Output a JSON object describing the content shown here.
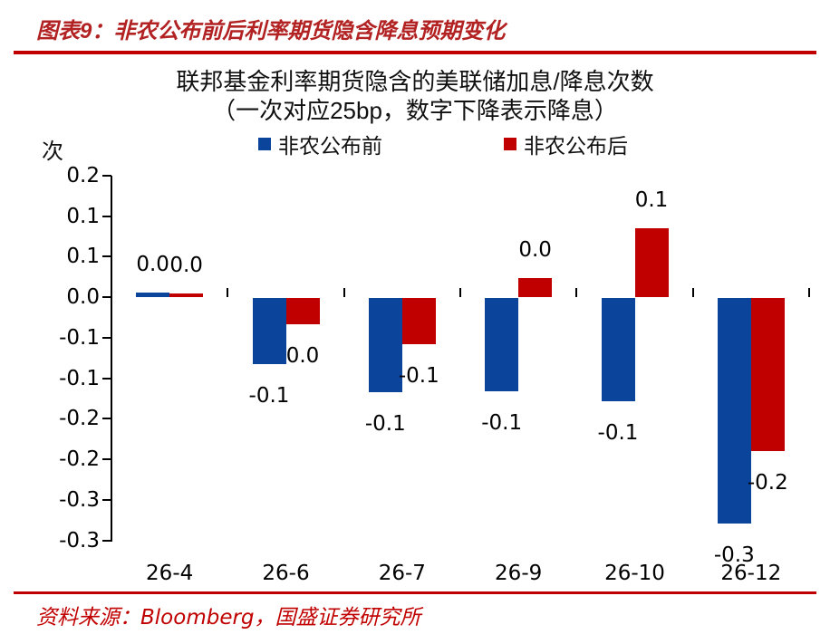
{
  "header": {
    "title": "图表9：非农公布前后利率期货隐含降息预期变化"
  },
  "footer": {
    "source": "资料来源：Bloomberg，国盛证券研究所"
  },
  "colors": {
    "before_blue": "#0B459B",
    "after_red": "#C00000",
    "header_text_red": "#B22222",
    "rule_red": "#C00000",
    "axis_black": "#000000"
  },
  "chart_data": {
    "type": "bar",
    "title_line1": "联邦基金利率期货隐含的美联储加息/降息次数",
    "title_line2": "（一次对应25bp，数字下降表示降息）",
    "unit_label": "次",
    "legend_position": "top",
    "grid": false,
    "categories": [
      "26-4",
      "26-6",
      "26-7",
      "26-9",
      "26-10",
      "26-12"
    ],
    "series": [
      {
        "name": "非农公布前",
        "color_key": "before_blue",
        "values": [
          0.006,
          -0.091,
          -0.129,
          -0.128,
          -0.142,
          -0.31
        ],
        "labels": [
          "0.0",
          "-0.1",
          "-0.1",
          "-0.1",
          "-0.1",
          "-0.3"
        ]
      },
      {
        "name": "非农公布后",
        "color_key": "after_red",
        "values": [
          0.005,
          -0.036,
          -0.063,
          0.026,
          0.094,
          -0.21
        ],
        "labels": [
          "0.0",
          "0.0",
          "-0.1",
          "0.0",
          "0.1",
          "-0.2"
        ]
      }
    ],
    "y_axis": {
      "tick_labels": [
        "0.2",
        "0.1",
        "0.1",
        "0.0",
        "-0.1",
        "-0.1",
        "-0.2",
        "-0.2",
        "-0.3",
        "-0.3"
      ],
      "top_value": 0.167,
      "bottom_value": -0.333,
      "zero_label": "0.0"
    }
  }
}
